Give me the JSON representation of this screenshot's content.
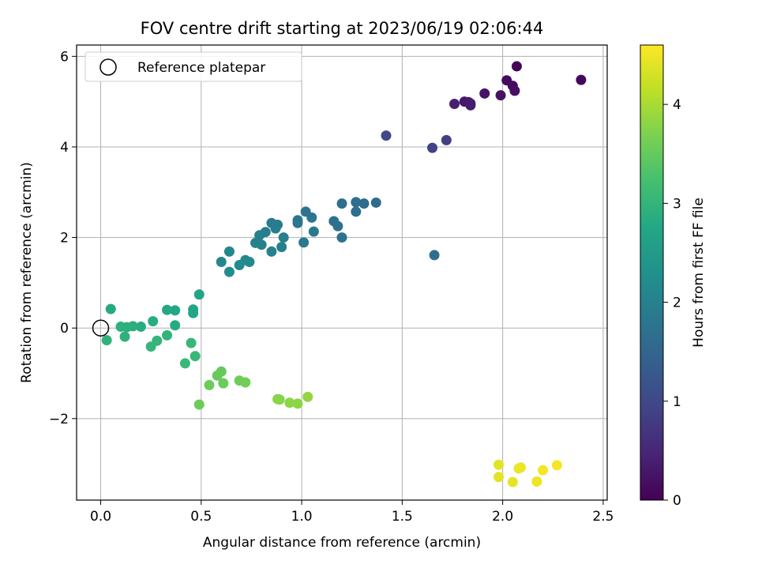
{
  "chart_data": {
    "type": "scatter",
    "title": "FOV centre drift starting at 2023/06/19 02:06:44",
    "xlabel": "Angular distance from reference (arcmin)",
    "ylabel": "Rotation from reference (arcmin)",
    "xlim": [
      -0.12,
      2.52
    ],
    "ylim": [
      -3.8,
      6.25
    ],
    "xticks": [
      0.0,
      0.5,
      1.0,
      1.5,
      2.0,
      2.5
    ],
    "xtick_labels": [
      "0.0",
      "0.5",
      "1.0",
      "1.5",
      "2.0",
      "2.5"
    ],
    "yticks": [
      -2,
      0,
      2,
      4,
      6
    ],
    "ytick_labels": [
      "−2",
      "0",
      "2",
      "4",
      "6"
    ],
    "grid": true,
    "legend": {
      "placement": "top-left",
      "label": "Reference platepar"
    },
    "reference_point": {
      "x": 0.0,
      "y": 0.0
    },
    "colorbar": {
      "label": "Hours from first FF file",
      "range": [
        0,
        4.6
      ],
      "ticks": [
        0,
        1,
        2,
        3,
        4
      ],
      "tick_labels": [
        "0",
        "1",
        "2",
        "3",
        "4"
      ],
      "colormap": "viridis"
    },
    "points": [
      {
        "x": 2.07,
        "y": 5.78,
        "c": 0.05
      },
      {
        "x": 2.39,
        "y": 5.48,
        "c": 0.08
      },
      {
        "x": 2.02,
        "y": 5.47,
        "c": 0.12
      },
      {
        "x": 2.05,
        "y": 5.35,
        "c": 0.15
      },
      {
        "x": 2.06,
        "y": 5.24,
        "c": 0.18
      },
      {
        "x": 1.99,
        "y": 5.14,
        "c": 0.22
      },
      {
        "x": 1.91,
        "y": 5.18,
        "c": 0.25
      },
      {
        "x": 1.81,
        "y": 5.0,
        "c": 0.3
      },
      {
        "x": 1.83,
        "y": 4.99,
        "c": 0.33
      },
      {
        "x": 1.84,
        "y": 4.92,
        "c": 0.36
      },
      {
        "x": 1.76,
        "y": 4.95,
        "c": 0.4
      },
      {
        "x": 1.84,
        "y": 4.96,
        "c": 0.38
      },
      {
        "x": 1.72,
        "y": 4.15,
        "c": 0.85
      },
      {
        "x": 1.65,
        "y": 3.98,
        "c": 0.9
      },
      {
        "x": 1.42,
        "y": 4.25,
        "c": 1.0
      },
      {
        "x": 1.66,
        "y": 1.61,
        "c": 1.65
      },
      {
        "x": 1.37,
        "y": 2.77,
        "c": 1.6
      },
      {
        "x": 1.31,
        "y": 2.75,
        "c": 1.62
      },
      {
        "x": 1.27,
        "y": 2.78,
        "c": 1.64
      },
      {
        "x": 1.27,
        "y": 2.57,
        "c": 1.66
      },
      {
        "x": 1.2,
        "y": 2.75,
        "c": 1.68
      },
      {
        "x": 1.16,
        "y": 2.36,
        "c": 1.7
      },
      {
        "x": 1.18,
        "y": 2.25,
        "c": 1.72
      },
      {
        "x": 1.2,
        "y": 2.0,
        "c": 1.74
      },
      {
        "x": 1.02,
        "y": 2.57,
        "c": 1.76
      },
      {
        "x": 1.05,
        "y": 2.44,
        "c": 1.78
      },
      {
        "x": 0.98,
        "y": 2.38,
        "c": 1.8
      },
      {
        "x": 0.98,
        "y": 2.32,
        "c": 1.82
      },
      {
        "x": 1.06,
        "y": 2.13,
        "c": 1.84
      },
      {
        "x": 1.01,
        "y": 1.89,
        "c": 1.86
      },
      {
        "x": 0.88,
        "y": 2.28,
        "c": 1.88
      },
      {
        "x": 0.85,
        "y": 2.32,
        "c": 1.9
      },
      {
        "x": 0.87,
        "y": 2.2,
        "c": 1.92
      },
      {
        "x": 0.82,
        "y": 2.12,
        "c": 1.94
      },
      {
        "x": 0.79,
        "y": 2.05,
        "c": 1.96
      },
      {
        "x": 0.77,
        "y": 1.88,
        "c": 1.98
      },
      {
        "x": 0.8,
        "y": 1.84,
        "c": 2.0
      },
      {
        "x": 0.91,
        "y": 2.0,
        "c": 1.95
      },
      {
        "x": 0.9,
        "y": 1.79,
        "c": 1.97
      },
      {
        "x": 0.85,
        "y": 1.69,
        "c": 2.02
      },
      {
        "x": 0.64,
        "y": 1.69,
        "c": 2.1
      },
      {
        "x": 0.6,
        "y": 1.46,
        "c": 2.12
      },
      {
        "x": 0.72,
        "y": 1.5,
        "c": 2.14
      },
      {
        "x": 0.74,
        "y": 1.46,
        "c": 2.16
      },
      {
        "x": 0.69,
        "y": 1.39,
        "c": 2.18
      },
      {
        "x": 0.64,
        "y": 1.24,
        "c": 2.2
      },
      {
        "x": 0.49,
        "y": 0.74,
        "c": 2.7
      },
      {
        "x": 0.46,
        "y": 0.41,
        "c": 2.72
      },
      {
        "x": 0.46,
        "y": 0.33,
        "c": 2.74
      },
      {
        "x": 0.37,
        "y": 0.39,
        "c": 2.76
      },
      {
        "x": 0.33,
        "y": 0.4,
        "c": 2.78
      },
      {
        "x": 0.05,
        "y": 0.42,
        "c": 2.8
      },
      {
        "x": 0.37,
        "y": 0.06,
        "c": 2.82
      },
      {
        "x": 0.26,
        "y": 0.15,
        "c": 2.84
      },
      {
        "x": 0.2,
        "y": 0.03,
        "c": 2.86
      },
      {
        "x": 0.16,
        "y": 0.04,
        "c": 2.88
      },
      {
        "x": 0.13,
        "y": 0.02,
        "c": 2.9
      },
      {
        "x": 0.1,
        "y": 0.03,
        "c": 2.92
      },
      {
        "x": 0.12,
        "y": -0.19,
        "c": 2.94
      },
      {
        "x": 0.03,
        "y": -0.27,
        "c": 2.96
      },
      {
        "x": 0.33,
        "y": -0.16,
        "c": 2.98
      },
      {
        "x": 0.28,
        "y": -0.28,
        "c": 3.0
      },
      {
        "x": 0.25,
        "y": -0.41,
        "c": 3.02
      },
      {
        "x": 0.45,
        "y": -0.33,
        "c": 3.04
      },
      {
        "x": 0.47,
        "y": -0.62,
        "c": 3.06
      },
      {
        "x": 0.42,
        "y": -0.78,
        "c": 3.08
      },
      {
        "x": 0.6,
        "y": -0.96,
        "c": 3.5
      },
      {
        "x": 0.58,
        "y": -1.05,
        "c": 3.52
      },
      {
        "x": 0.61,
        "y": -1.22,
        "c": 3.54
      },
      {
        "x": 0.54,
        "y": -1.26,
        "c": 3.56
      },
      {
        "x": 0.69,
        "y": -1.16,
        "c": 3.58
      },
      {
        "x": 0.72,
        "y": -1.2,
        "c": 3.6
      },
      {
        "x": 0.49,
        "y": -1.69,
        "c": 3.55
      },
      {
        "x": 0.89,
        "y": -1.58,
        "c": 3.75
      },
      {
        "x": 0.88,
        "y": -1.57,
        "c": 3.78
      },
      {
        "x": 0.94,
        "y": -1.65,
        "c": 3.8
      },
      {
        "x": 0.98,
        "y": -1.67,
        "c": 3.82
      },
      {
        "x": 1.03,
        "y": -1.52,
        "c": 3.85
      },
      {
        "x": 1.98,
        "y": -3.02,
        "c": 4.4
      },
      {
        "x": 1.98,
        "y": -3.29,
        "c": 4.42
      },
      {
        "x": 2.05,
        "y": -3.4,
        "c": 4.44
      },
      {
        "x": 2.08,
        "y": -3.1,
        "c": 4.46
      },
      {
        "x": 2.09,
        "y": -3.08,
        "c": 4.48
      },
      {
        "x": 2.17,
        "y": -3.39,
        "c": 4.5
      },
      {
        "x": 2.2,
        "y": -3.14,
        "c": 4.52
      },
      {
        "x": 2.27,
        "y": -3.03,
        "c": 4.55
      }
    ]
  }
}
